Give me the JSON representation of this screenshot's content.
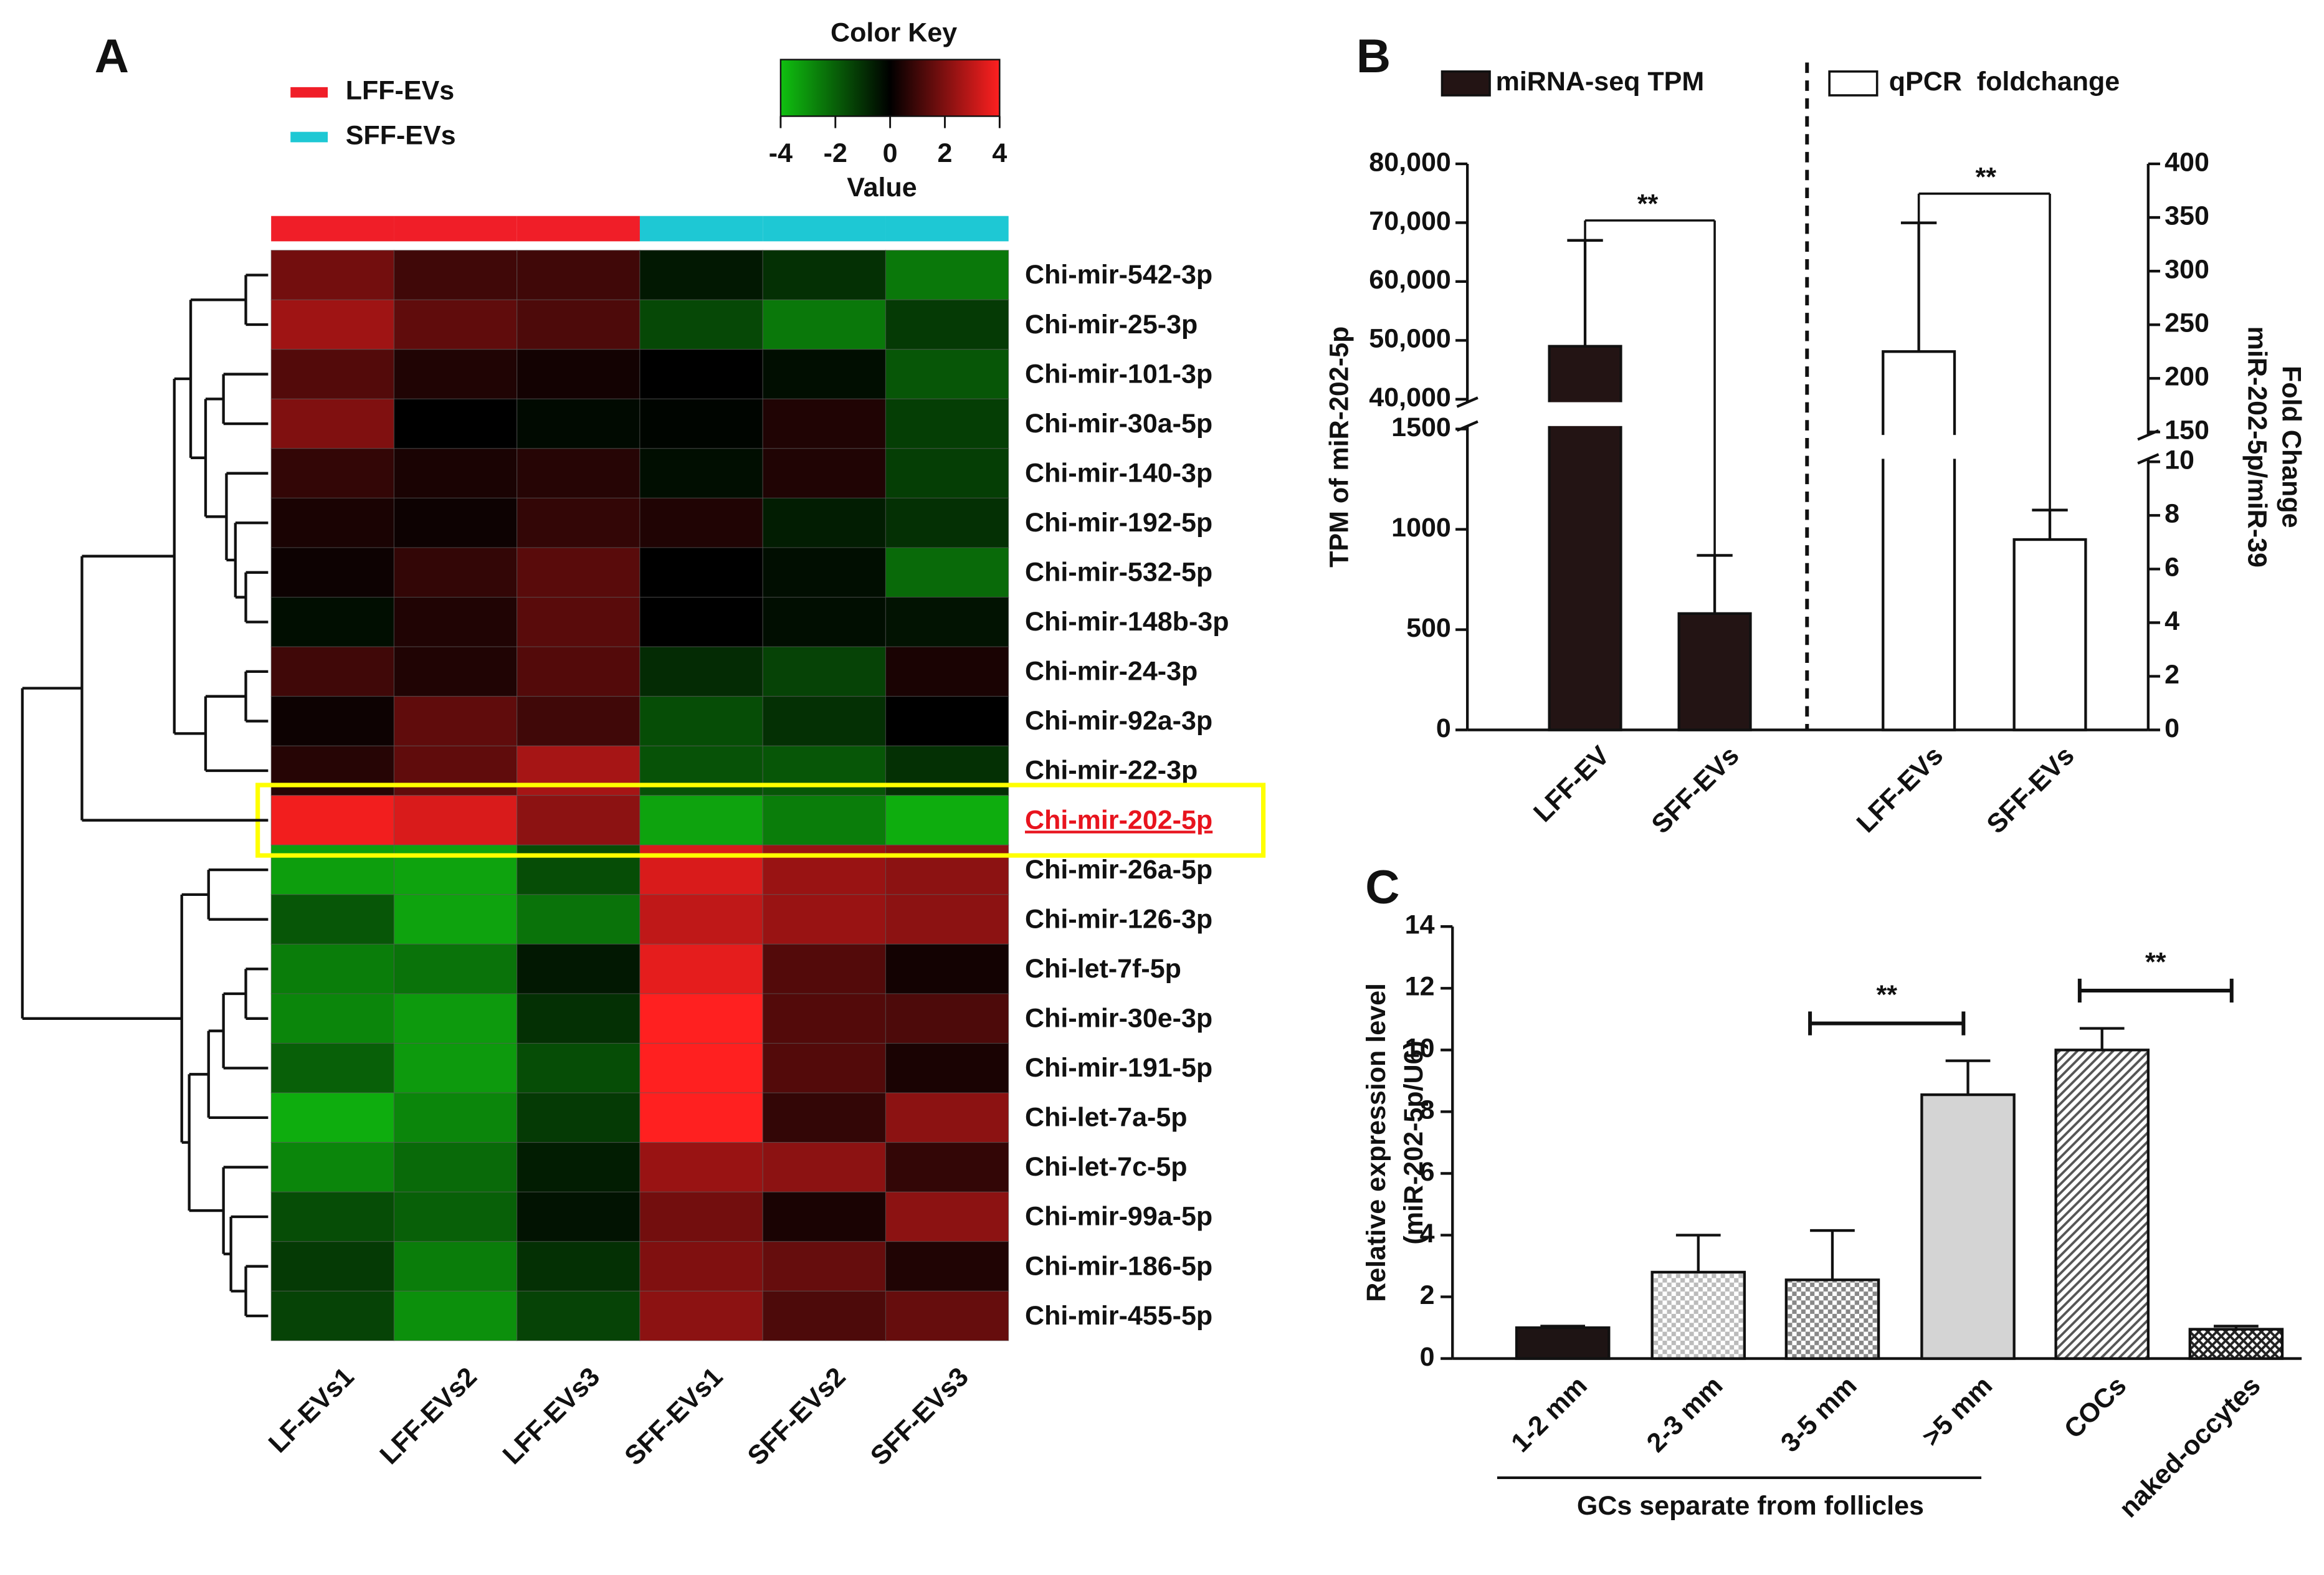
{
  "chart_data": [
    {
      "type": "heatmap",
      "panel": "A",
      "rows": [
        "Chi-mir-542-3p",
        "Chi-mir-25-3p",
        "Chi-mir-101-3p",
        "Chi-mir-30a-5p",
        "Chi-mir-140-3p",
        "Chi-mir-192-5p",
        "Chi-mir-532-5p",
        "Chi-mir-148b-3p",
        "Chi-mir-24-3p",
        "Chi-mir-92a-3p",
        "Chi-mir-22-3p",
        "Chi-mir-202-5p",
        "Chi-mir-26a-5p",
        "Chi-mir-126-3p",
        "Chi-let-7f-5p",
        "Chi-mir-30e-3p",
        "Chi-mir-191-5p",
        "Chi-let-7a-5p",
        "Chi-let-7c-5p",
        "Chi-mir-99a-5p",
        "Chi-mir-186-5p",
        "Chi-mir-455-5p"
      ],
      "columns": [
        "LF-EVs1",
        "LFF-EVs2",
        "LFF-EVs3",
        "SFF-EVs1",
        "SFF-EVs2",
        "SFF-EVs3"
      ],
      "column_colors": [
        "#f01e28",
        "#f01e28",
        "#f01e28",
        "#1ec8d4",
        "#1ec8d4",
        "#1ec8d4"
      ],
      "legend": [
        {
          "name": "LFF-EVs",
          "color": "#f01e28"
        },
        {
          "name": "SFF-EVs",
          "color": "#1ec8d4"
        }
      ],
      "highlight_row": 11,
      "values": [
        [
          1.8,
          1.0,
          1.0,
          -0.5,
          -1.0,
          -2.5
        ],
        [
          2.5,
          1.5,
          1.2,
          -1.5,
          -2.5,
          -1.2
        ],
        [
          1.3,
          0.5,
          0.3,
          0,
          -0.3,
          -1.8
        ],
        [
          2.0,
          0,
          -0.2,
          -0.1,
          0.5,
          -1.3
        ],
        [
          0.8,
          0.4,
          0.6,
          -0.3,
          0.5,
          -1.3
        ],
        [
          0.4,
          0.2,
          0.8,
          0.5,
          -0.6,
          -1.0
        ],
        [
          0.2,
          0.8,
          1.4,
          0,
          -0.3,
          -2.2
        ],
        [
          -0.3,
          0.5,
          1.4,
          0,
          -0.3,
          -0.4
        ],
        [
          1.0,
          0.5,
          1.3,
          -0.9,
          -1.4,
          0.4
        ],
        [
          0.2,
          1.5,
          1.0,
          -1.6,
          -1.0,
          0
        ],
        [
          0.6,
          1.5,
          2.6,
          -1.7,
          -1.8,
          -1.0
        ],
        [
          3.8,
          3.4,
          2.2,
          -3.4,
          -2.6,
          -3.6
        ],
        [
          -3.3,
          -3.4,
          -1.6,
          3.4,
          2.4,
          2.2
        ],
        [
          -1.8,
          -3.4,
          -2.4,
          3.0,
          2.4,
          2.2
        ],
        [
          -2.6,
          -2.4,
          -0.5,
          3.6,
          1.3,
          0.3
        ],
        [
          -2.8,
          -3.2,
          -1.0,
          4.0,
          1.3,
          1.2
        ],
        [
          -2.0,
          -3.2,
          -1.6,
          4.0,
          1.3,
          0.4
        ],
        [
          -3.6,
          -2.8,
          -1.2,
          4.0,
          0.8,
          2.2
        ],
        [
          -2.8,
          -2.2,
          -0.6,
          2.4,
          2.2,
          0.8
        ],
        [
          -1.6,
          -2.0,
          -0.4,
          1.8,
          0.4,
          2.2
        ],
        [
          -1.2,
          -2.6,
          -1.0,
          2.0,
          1.6,
          0.5
        ],
        [
          -1.4,
          -3.0,
          -1.4,
          2.2,
          1.2,
          1.6
        ]
      ],
      "colorbar": {
        "title": "Color Key",
        "label": "Value",
        "lim": [
          -4,
          4
        ],
        "ticks": [
          -4,
          -2,
          0,
          2,
          4
        ],
        "colors": [
          "#10c010",
          "#000000",
          "#ff2020"
        ]
      }
    },
    {
      "type": "broken_bar",
      "panel": "B",
      "ylabel": "TPM of miR-202-5p",
      "y2label": [
        "Fold Change",
        "miR-202-5p/miR-39"
      ],
      "ylim": [
        0,
        80000
      ],
      "ybreak": [
        1500,
        40000
      ],
      "yticks": [
        0,
        500,
        1000,
        1500,
        {
          "value": 40000,
          "label": "40,000"
        },
        {
          "value": 50000,
          "label": "50,000"
        },
        {
          "value": 60000,
          "label": "60,000"
        },
        {
          "value": 70000,
          "label": "70,000"
        },
        {
          "value": 80000,
          "label": "80,000"
        }
      ],
      "y2lim": [
        0,
        400
      ],
      "y2break": [
        10,
        150
      ],
      "y2ticks": [
        0,
        2,
        4,
        6,
        8,
        10,
        150,
        200,
        250,
        300,
        350,
        400
      ],
      "series": [
        {
          "name": "miRNA-seq TPM",
          "color": "#231414",
          "categories": [
            "LFF-EV",
            "SFF-EVs"
          ],
          "values": [
            49000,
            580
          ],
          "errors": [
            18000,
            290
          ]
        },
        {
          "name": "qPCR  foldchange",
          "color": "#ffffff",
          "axis": "y2",
          "categories": [
            "LFF-EVs",
            "SFF-EVs"
          ],
          "values": [
            225,
            7.1
          ],
          "errors": [
            120,
            1.1
          ]
        }
      ],
      "annotations": [
        "**",
        "**"
      ]
    },
    {
      "type": "bar",
      "panel": "C",
      "ylabel": [
        "Relative expression level",
        "(miR-202-5p/U6)"
      ],
      "categories": [
        "1-2 mm",
        "2-3 mm",
        "3-5 mm",
        ">5 mm",
        "COCs",
        "naked-occytes"
      ],
      "values": [
        1.0,
        2.8,
        2.55,
        8.55,
        10.0,
        0.95
      ],
      "errors": [
        0.05,
        1.2,
        1.6,
        1.1,
        0.7,
        0.1
      ],
      "colors": [
        "#1e1414",
        "#bbbbbb",
        "#888888",
        "#d4d4d4",
        "#555555",
        "#222222"
      ],
      "patterns": [
        "solid",
        "checker",
        "checker",
        "solid",
        "hatch",
        "crosshatch"
      ],
      "ylim": [
        0,
        14
      ],
      "yticks": [
        0,
        2,
        4,
        6,
        8,
        10,
        12,
        14
      ],
      "group_label": "GCs separate from follicles",
      "annotations": [
        "**",
        "**"
      ]
    }
  ]
}
